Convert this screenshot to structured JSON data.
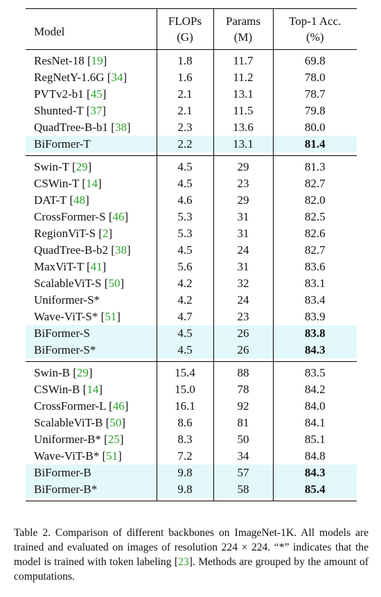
{
  "table": {
    "headers": {
      "model": "Model",
      "flops": [
        "FLOPs",
        "(G)"
      ],
      "params": [
        "Params",
        "(M)"
      ],
      "acc": [
        "Top-1 Acc.",
        "(%)"
      ]
    },
    "groups": [
      [
        {
          "name": "ResNet-18",
          "ref": "19",
          "flops": "1.8",
          "params": "11.7",
          "acc": "69.8",
          "highlight": false,
          "bold": false
        },
        {
          "name": "RegNetY-1.6G",
          "ref": "34",
          "flops": "1.6",
          "params": "11.2",
          "acc": "78.0",
          "highlight": false,
          "bold": false
        },
        {
          "name": "PVTv2-b1",
          "ref": "45",
          "flops": "2.1",
          "params": "13.1",
          "acc": "78.7",
          "highlight": false,
          "bold": false
        },
        {
          "name": "Shunted-T",
          "ref": "37",
          "flops": "2.1",
          "params": "11.5",
          "acc": "79.8",
          "highlight": false,
          "bold": false
        },
        {
          "name": "QuadTree-B-b1",
          "ref": "38",
          "flops": "2.3",
          "params": "13.6",
          "acc": "80.0",
          "highlight": false,
          "bold": false
        },
        {
          "name": "BiFormer-T",
          "ref": "",
          "flops": "2.2",
          "params": "13.1",
          "acc": "81.4",
          "highlight": true,
          "bold": true
        }
      ],
      [
        {
          "name": "Swin-T",
          "ref": "29",
          "flops": "4.5",
          "params": "29",
          "acc": "81.3",
          "highlight": false,
          "bold": false
        },
        {
          "name": "CSWin-T",
          "ref": "14",
          "flops": "4.5",
          "params": "23",
          "acc": "82.7",
          "highlight": false,
          "bold": false
        },
        {
          "name": "DAT-T",
          "ref": "48",
          "flops": "4.6",
          "params": "29",
          "acc": "82.0",
          "highlight": false,
          "bold": false
        },
        {
          "name": "CrossFormer-S",
          "ref": "46",
          "flops": "5.3",
          "params": "31",
          "acc": "82.5",
          "highlight": false,
          "bold": false
        },
        {
          "name": "RegionViT-S",
          "ref": "2",
          "flops": "5.3",
          "params": "31",
          "acc": "82.6",
          "highlight": false,
          "bold": false
        },
        {
          "name": "QuadTree-B-b2",
          "ref": "38",
          "flops": "4.5",
          "params": "24",
          "acc": "82.7",
          "highlight": false,
          "bold": false
        },
        {
          "name": "MaxViT-T",
          "ref": "41",
          "flops": "5.6",
          "params": "31",
          "acc": "83.6",
          "highlight": false,
          "bold": false
        },
        {
          "name": "ScalableViT-S",
          "ref": "50",
          "flops": "4.2",
          "params": "32",
          "acc": "83.1",
          "highlight": false,
          "bold": false
        },
        {
          "name": "Uniformer-S*",
          "ref": "",
          "flops": "4.2",
          "params": "24",
          "acc": "83.4",
          "highlight": false,
          "bold": false
        },
        {
          "name": "Wave-ViT-S*",
          "ref": "51",
          "flops": "4.7",
          "params": "23",
          "acc": "83.9",
          "highlight": false,
          "bold": false
        },
        {
          "name": "BiFormer-S",
          "ref": "",
          "flops": "4.5",
          "params": "26",
          "acc": "83.8",
          "highlight": true,
          "bold": true
        },
        {
          "name": "BiFormer-S*",
          "ref": "",
          "flops": "4.5",
          "params": "26",
          "acc": "84.3",
          "highlight": true,
          "bold": true
        }
      ],
      [
        {
          "name": "Swin-B",
          "ref": "29",
          "flops": "15.4",
          "params": "88",
          "acc": "83.5",
          "highlight": false,
          "bold": false
        },
        {
          "name": "CSWin-B",
          "ref": "14",
          "flops": "15.0",
          "params": "78",
          "acc": "84.2",
          "highlight": false,
          "bold": false
        },
        {
          "name": "CrossFormer-L",
          "ref": "46",
          "flops": "16.1",
          "params": "92",
          "acc": "84.0",
          "highlight": false,
          "bold": false
        },
        {
          "name": "ScalableViT-B",
          "ref": "50",
          "flops": "8.6",
          "params": "81",
          "acc": "84.1",
          "highlight": false,
          "bold": false
        },
        {
          "name": "Uniformer-B*",
          "ref": "25",
          "flops": "8.3",
          "params": "50",
          "acc": "85.1",
          "highlight": false,
          "bold": false
        },
        {
          "name": "Wave-ViT-B*",
          "ref": "51",
          "flops": "7.2",
          "params": "34",
          "acc": "84.8",
          "highlight": false,
          "bold": false
        },
        {
          "name": "BiFormer-B",
          "ref": "",
          "flops": "9.8",
          "params": "57",
          "acc": "84.3",
          "highlight": true,
          "bold": true
        },
        {
          "name": "BiFormer-B*",
          "ref": "",
          "flops": "9.8",
          "params": "58",
          "acc": "85.4",
          "highlight": true,
          "bold": true
        }
      ]
    ]
  },
  "caption": {
    "part1": "Table 2.  Comparison of different backbones on ImageNet-1K. All models are trained and evaluated on images of resolution 224 × 224. “*” indicates that the model is trained with token labeling [",
    "ref": "23",
    "part2": "]. Methods are grouped by the amount of computations."
  },
  "colors": {
    "highlight": "#e2f8fa",
    "ref_link": "#2aa02a"
  }
}
